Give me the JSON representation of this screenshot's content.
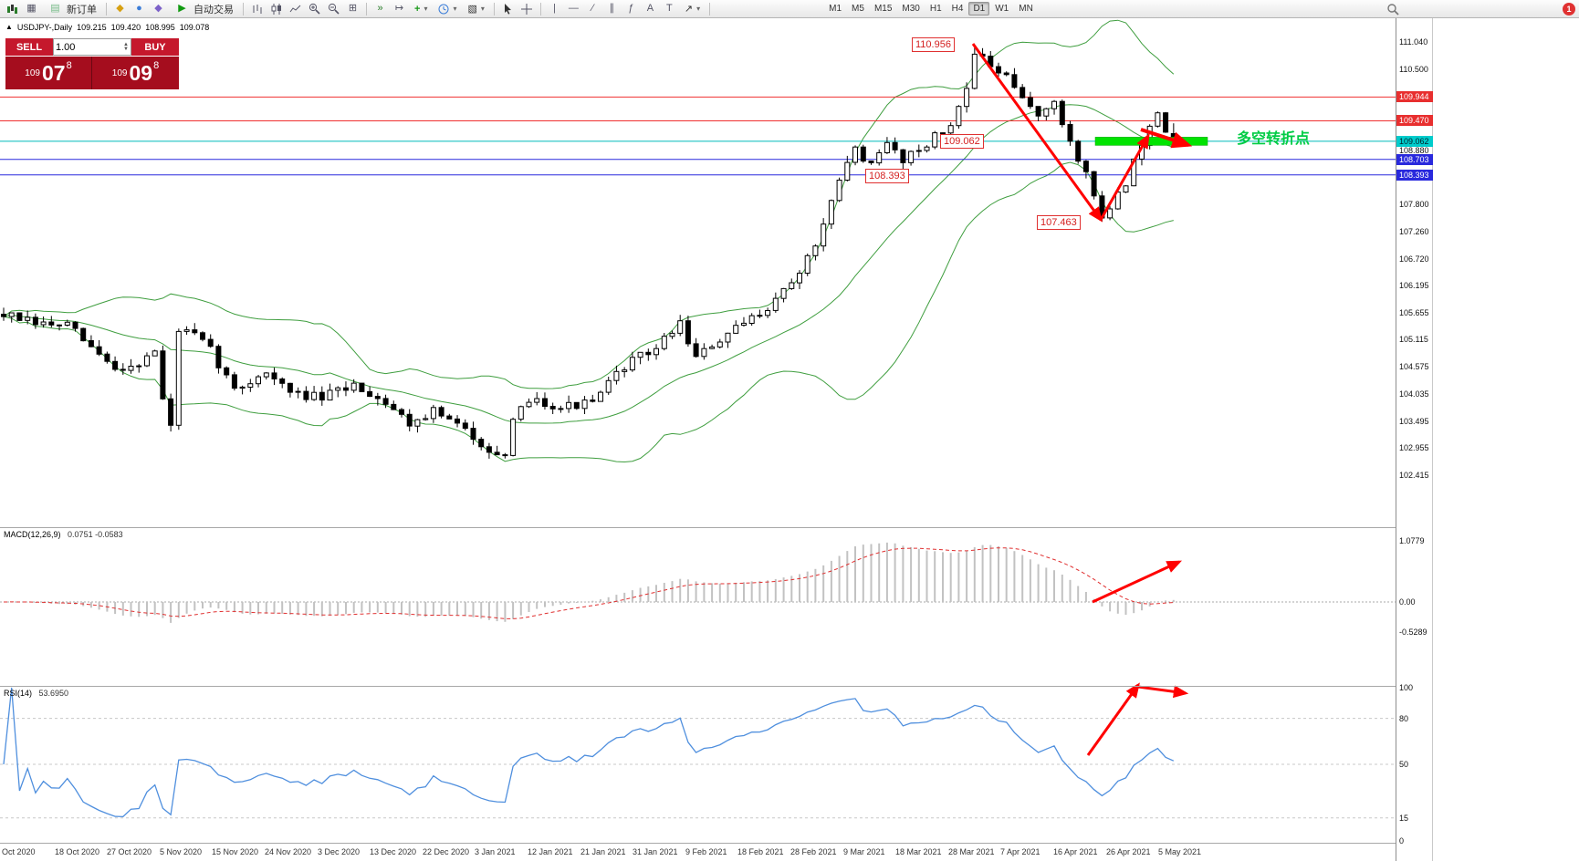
{
  "toolbar": {
    "new_order_label": "新订单",
    "auto_trading_label": "自动交易",
    "timeframes": [
      "M1",
      "M5",
      "M15",
      "M30",
      "H1",
      "H4",
      "D1",
      "W1",
      "MN"
    ],
    "active_timeframe": "D1",
    "notification_count": "1",
    "icons": [
      "new-chart",
      "profiles",
      "new-order",
      "market-watch",
      "data-window",
      "navigator",
      "auto-trading",
      "bar-chart",
      "candlestick-chart",
      "line-chart",
      "zoom-in",
      "zoom-out",
      "tile-windows",
      "auto-scroll",
      "chart-shift",
      "indicators",
      "periods",
      "templates",
      "cursor",
      "crosshair",
      "vertical-line",
      "horizontal-line",
      "trendline",
      "equidistant-channel",
      "fibonacci",
      "text",
      "text-label",
      "arrows",
      "search",
      "notifications"
    ]
  },
  "quote": {
    "symbol_line": "USDJPY-,Daily",
    "open": "109.215",
    "high": "109.420",
    "low": "108.995",
    "close": "109.078"
  },
  "trade_panel": {
    "sell_label": "SELL",
    "buy_label": "BUY",
    "volume": "1.00",
    "bid_full": "109.078",
    "ask_full": "109.098",
    "bid": {
      "prefix": "109",
      "big": "07",
      "sup": "8"
    },
    "ask": {
      "prefix": "109",
      "big": "09",
      "sup": "8"
    }
  },
  "chart_data": {
    "type": "candlestick",
    "symbol": "USDJPY-",
    "period": "Daily",
    "candle_count": 148,
    "y_axis": {
      "ticks": [
        111.04,
        110.5,
        108.88,
        107.8,
        107.26,
        106.72,
        106.195,
        105.655,
        105.115,
        104.575,
        104.035,
        103.495,
        102.955,
        102.415
      ]
    },
    "x_axis": {
      "labels": [
        "Oct 2020",
        "18 Oct 2020",
        "27 Oct 2020",
        "5 Nov 2020",
        "15 Nov 2020",
        "24 Nov 2020",
        "3 Dec 2020",
        "13 Dec 2020",
        "22 Dec 2020",
        "3 Jan 2021",
        "12 Jan 2021",
        "21 Jan 2021",
        "31 Jan 2021",
        "9 Feb 2021",
        "18 Feb 2021",
        "28 Feb 2021",
        "9 Mar 2021",
        "18 Mar 2021",
        "28 Mar 2021",
        "7 Apr 2021",
        "16 Apr 2021",
        "26 Apr 2021",
        "5 May 2021"
      ]
    },
    "levels": [
      {
        "price": 109.944,
        "label": "109.944",
        "style": "red"
      },
      {
        "price": 109.47,
        "label": "109.470",
        "style": "red"
      },
      {
        "price": 109.062,
        "label": "109.062",
        "style": "teal"
      },
      {
        "price": 108.703,
        "label": "108.703",
        "style": "blue"
      },
      {
        "price": 108.393,
        "label": "108.393",
        "style": "blue"
      }
    ],
    "annotations": {
      "peak": "110.956",
      "low": "107.463",
      "pivot": "109.062",
      "support": "108.393",
      "turning_point_text": "多空转折点"
    },
    "price_path_anchors": [
      [
        0,
        105.62
      ],
      [
        4,
        105.42
      ],
      [
        8,
        105.4
      ],
      [
        11,
        104.95
      ],
      [
        14,
        104.52
      ],
      [
        17,
        104.65
      ],
      [
        19,
        104.9
      ],
      [
        20,
        103.9
      ],
      [
        21,
        103.4
      ],
      [
        22,
        105.3
      ],
      [
        24,
        105.2
      ],
      [
        26,
        104.9
      ],
      [
        29,
        104.1
      ],
      [
        33,
        104.48
      ],
      [
        36,
        104.05
      ],
      [
        40,
        103.95
      ],
      [
        44,
        104.22
      ],
      [
        48,
        103.88
      ],
      [
        51,
        103.45
      ],
      [
        54,
        103.7
      ],
      [
        58,
        103.3
      ],
      [
        61,
        102.95
      ],
      [
        63,
        102.72
      ],
      [
        64,
        103.45
      ],
      [
        66,
        103.95
      ],
      [
        70,
        103.78
      ],
      [
        74,
        103.85
      ],
      [
        78,
        104.6
      ],
      [
        82,
        104.95
      ],
      [
        85,
        105.45
      ],
      [
        87,
        104.75
      ],
      [
        90,
        105.1
      ],
      [
        93,
        105.42
      ],
      [
        96,
        105.78
      ],
      [
        99,
        106.25
      ],
      [
        101,
        106.72
      ],
      [
        103,
        107.35
      ],
      [
        105,
        108.25
      ],
      [
        107,
        108.95
      ],
      [
        109,
        108.55
      ],
      [
        111,
        109.02
      ],
      [
        113,
        108.72
      ],
      [
        115,
        108.92
      ],
      [
        117,
        109.15
      ],
      [
        119,
        109.35
      ],
      [
        121,
        110.2
      ],
      [
        122,
        110.8
      ],
      [
        124,
        110.55
      ],
      [
        126,
        110.3
      ],
      [
        128,
        109.9
      ],
      [
        130,
        109.62
      ],
      [
        132,
        109.78
      ],
      [
        134,
        109.05
      ],
      [
        136,
        108.42
      ],
      [
        138,
        107.55
      ],
      [
        139,
        107.72
      ],
      [
        140,
        108.02
      ],
      [
        141,
        108.12
      ],
      [
        142,
        108.72
      ],
      [
        143,
        109.05
      ],
      [
        144,
        109.32
      ],
      [
        145,
        109.55
      ],
      [
        146,
        109.22
      ],
      [
        147,
        109.08
      ]
    ],
    "key_points": {
      "high": 110.956,
      "low": 107.463,
      "last_close": 109.078
    },
    "indicators": {
      "bollinger": {
        "period": 20,
        "deviation": 2
      },
      "macd": {
        "title": "MACD(12,26,9)",
        "values": "0.0751 -0.0583",
        "scale": [
          1.0779,
          0,
          -0.5289
        ],
        "scale_labels": [
          "1.0779",
          "0.00",
          "-0.5289"
        ]
      },
      "rsi": {
        "title": "RSI(14)",
        "value": "53.6950",
        "levels": [
          100,
          80,
          50,
          15,
          0
        ],
        "level_labels": [
          "100",
          "80",
          "50",
          "15",
          "0"
        ]
      }
    }
  },
  "colors": {
    "level_red": "#f03030",
    "level_teal": "#00baba",
    "level_blue": "#2929dd",
    "band_green": "#3f9e3f",
    "highlight_green": "#00e300",
    "highlight_edge": "#00a000",
    "arrow_red": "#ff0000",
    "macd_hist": "#c2c2c2",
    "macd_signal": "#e03030",
    "rsi_blue": "#4f8fde",
    "sell_red": "#c5182c",
    "tile_red": "#a50d1e"
  }
}
